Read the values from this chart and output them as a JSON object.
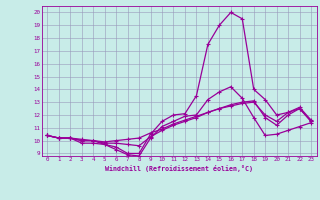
{
  "xlabel": "Windchill (Refroidissement éolien,°C)",
  "bg_color": "#c8ece8",
  "grid_color": "#9999bb",
  "line_color": "#990099",
  "x_hours": [
    0,
    1,
    2,
    3,
    4,
    5,
    6,
    7,
    8,
    9,
    10,
    11,
    12,
    13,
    14,
    15,
    16,
    17,
    18,
    19,
    20,
    21,
    22,
    23
  ],
  "line1": [
    10.4,
    10.2,
    10.2,
    10.1,
    10.0,
    9.7,
    9.5,
    9.0,
    9.0,
    10.5,
    11.5,
    12.0,
    12.1,
    13.5,
    17.5,
    19.0,
    20.0,
    19.5,
    14.0,
    13.2,
    12.0,
    12.2,
    12.5,
    11.5
  ],
  "line2": [
    10.4,
    10.2,
    10.2,
    9.8,
    9.8,
    9.7,
    9.3,
    8.9,
    8.8,
    10.2,
    11.1,
    11.5,
    11.9,
    12.0,
    13.2,
    13.8,
    14.2,
    13.3,
    11.8,
    10.4,
    10.5,
    10.8,
    11.1,
    11.4
  ],
  "line3": [
    10.4,
    10.2,
    10.2,
    10.0,
    10.0,
    9.8,
    9.8,
    9.7,
    9.6,
    10.3,
    10.8,
    11.2,
    11.5,
    11.8,
    12.2,
    12.5,
    12.8,
    13.0,
    13.1,
    11.8,
    11.2,
    12.0,
    12.5,
    11.5
  ],
  "line4": [
    10.4,
    10.2,
    10.2,
    10.0,
    10.0,
    9.9,
    10.0,
    10.1,
    10.2,
    10.6,
    10.9,
    11.3,
    11.6,
    11.9,
    12.2,
    12.5,
    12.7,
    12.9,
    13.0,
    12.0,
    11.5,
    12.2,
    12.6,
    11.6
  ],
  "ylim": [
    8.8,
    20.5
  ],
  "xlim": [
    -0.5,
    23.5
  ],
  "yticks": [
    9,
    10,
    11,
    12,
    13,
    14,
    15,
    16,
    17,
    18,
    19,
    20
  ],
  "xticks": [
    0,
    1,
    2,
    3,
    4,
    5,
    6,
    7,
    8,
    9,
    10,
    11,
    12,
    13,
    14,
    15,
    16,
    17,
    18,
    19,
    20,
    21,
    22,
    23
  ]
}
